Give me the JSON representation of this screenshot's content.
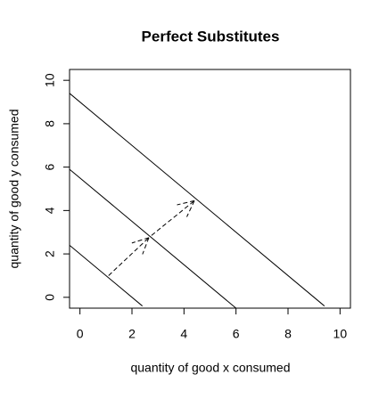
{
  "chart_data": {
    "type": "line",
    "title": "Perfect Substitutes",
    "xlabel": "quantity of good x consumed",
    "ylabel": "quantity of good y consumed",
    "xlim": [
      -0.4,
      10.4
    ],
    "ylim": [
      -0.5,
      10.5
    ],
    "xticks": [
      0,
      2,
      4,
      6,
      8,
      10
    ],
    "yticks": [
      0,
      2,
      4,
      6,
      8,
      10
    ],
    "series": [
      {
        "x": [
          -0.4,
          2.4
        ],
        "values": [
          2.4,
          -0.4
        ],
        "color": "#000000"
      },
      {
        "x": [
          -0.4,
          6.0
        ],
        "values": [
          5.9,
          -0.5
        ],
        "color": "#000000"
      },
      {
        "x": [
          -0.4,
          9.4
        ],
        "values": [
          9.4,
          -0.4
        ],
        "color": "#000000"
      }
    ],
    "arrows": [
      {
        "x": [
          1.1,
          2.65
        ],
        "values": [
          1.0,
          2.75
        ],
        "color": "#000000"
      },
      {
        "x": [
          2.75,
          4.4
        ],
        "values": [
          2.85,
          4.45
        ],
        "color": "#000000"
      }
    ]
  }
}
